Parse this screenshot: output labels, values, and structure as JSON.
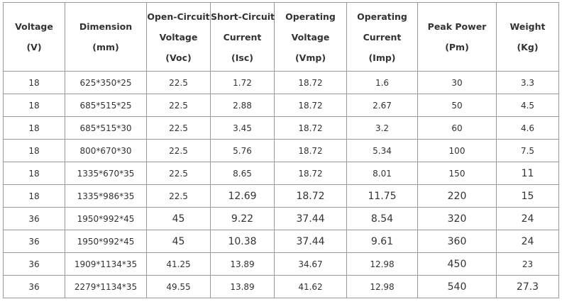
{
  "table": {
    "headers": [
      [
        "Voltage",
        "(V)"
      ],
      [
        "Dimension",
        "(mm)"
      ],
      [
        "Open-Circuit",
        "Voltage",
        "(Voc)"
      ],
      [
        "Short-Circuit",
        "Current",
        "(Isc)"
      ],
      [
        "Operating",
        "Voltage",
        "(Vmp)"
      ],
      [
        "Operating",
        "Current",
        "(Imp)"
      ],
      [
        "Peak Power",
        "(Pm)"
      ],
      [
        "Weight",
        "(Kg)"
      ]
    ],
    "rows": [
      [
        "18",
        "625*350*25",
        "22.5",
        "1.72",
        "18.72",
        "1.6",
        "30",
        "3.3"
      ],
      [
        "18",
        "685*515*25",
        "22.5",
        "2.88",
        "18.72",
        "2.67",
        "50",
        "4.5"
      ],
      [
        "18",
        "685*515*30",
        "22.5",
        "3.45",
        "18.72",
        "3.2",
        "60",
        "4.6"
      ],
      [
        "18",
        "800*670*30",
        "22.5",
        "5.76",
        "18.72",
        "5.34",
        "100",
        "7.5"
      ],
      [
        "18",
        "1335*670*35",
        "22.5",
        "8.65",
        "18.72",
        "8.01",
        "150",
        "11"
      ],
      [
        "18",
        "1335*986*35",
        "22.5",
        "12.69",
        "18.72",
        "11.75",
        "220",
        "15"
      ],
      [
        "36",
        "1950*992*45",
        "45",
        "9.22",
        "37.44",
        "8.54",
        "320",
        "24"
      ],
      [
        "36",
        "1950*992*45",
        "45",
        "10.38",
        "37.44",
        "9.61",
        "360",
        "24"
      ],
      [
        "36",
        "1909*1134*35",
        "41.25",
        "13.89",
        "34.67",
        "12.98",
        "450",
        "23"
      ],
      [
        "36",
        "2279*1134*35",
        "49.55",
        "13.89",
        "41.62",
        "12.98",
        "540",
        "27.3"
      ]
    ]
  }
}
